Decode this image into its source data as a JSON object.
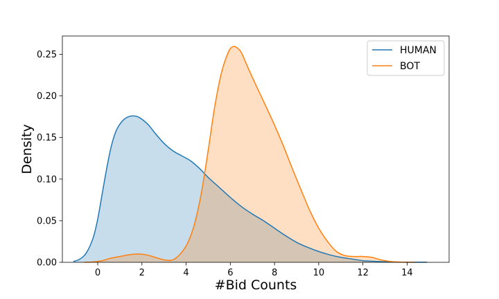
{
  "chart_data": {
    "type": "area",
    "title": "",
    "xlabel": "#Bid Counts",
    "ylabel": "Density",
    "xlim": [
      -1.6,
      15.9
    ],
    "ylim": [
      0,
      0.272
    ],
    "xticks": [
      0,
      2,
      4,
      6,
      8,
      10,
      12,
      14
    ],
    "yticks": [
      0.0,
      0.05,
      0.1,
      0.15,
      0.2,
      0.25
    ],
    "xtick_labels": [
      "0",
      "2",
      "4",
      "6",
      "8",
      "10",
      "12",
      "14"
    ],
    "ytick_labels": [
      "0.00",
      "0.05",
      "0.10",
      "0.15",
      "0.20",
      "0.25"
    ],
    "grid": false,
    "legend_position": "top-right",
    "series": [
      {
        "name": "HUMAN",
        "color": "#1f77b4",
        "x": [
          -1.1,
          -0.8,
          -0.5,
          -0.2,
          0.0,
          0.2,
          0.4,
          0.6,
          0.8,
          1.0,
          1.2,
          1.4,
          1.6,
          1.8,
          2.0,
          2.3,
          2.6,
          3.0,
          3.4,
          3.8,
          4.2,
          4.6,
          5.0,
          5.5,
          6.0,
          6.5,
          7.0,
          7.5,
          8.0,
          8.5,
          9.0,
          9.5,
          10.0,
          10.5,
          11.0,
          11.5,
          12.0,
          12.5,
          13.0,
          13.5,
          14.0,
          14.5,
          14.9
        ],
        "y": [
          0.001,
          0.004,
          0.012,
          0.03,
          0.052,
          0.082,
          0.112,
          0.138,
          0.156,
          0.166,
          0.172,
          0.175,
          0.176,
          0.175,
          0.172,
          0.165,
          0.155,
          0.143,
          0.134,
          0.128,
          0.122,
          0.113,
          0.102,
          0.09,
          0.078,
          0.067,
          0.058,
          0.05,
          0.041,
          0.032,
          0.024,
          0.018,
          0.013,
          0.009,
          0.006,
          0.004,
          0.002,
          0.0012,
          0.0006,
          0.0003,
          0.0001,
          0.0001,
          0.0001
        ]
      },
      {
        "name": "BOT",
        "color": "#ff7f0e",
        "x": [
          -0.6,
          -0.2,
          0.2,
          0.6,
          1.0,
          1.4,
          1.8,
          2.2,
          2.6,
          3.0,
          3.4,
          3.8,
          4.1,
          4.4,
          4.7,
          5.0,
          5.3,
          5.6,
          5.9,
          6.1,
          6.3,
          6.5,
          6.7,
          7.0,
          7.3,
          7.6,
          8.0,
          8.4,
          8.8,
          9.2,
          9.6,
          10.0,
          10.4,
          10.8,
          11.2,
          11.6,
          12.0,
          12.4,
          12.8,
          13.2,
          13.6,
          14.0,
          14.3
        ],
        "y": [
          0.0001,
          0.0005,
          0.002,
          0.005,
          0.007,
          0.009,
          0.01,
          0.009,
          0.006,
          0.003,
          0.003,
          0.012,
          0.025,
          0.048,
          0.085,
          0.135,
          0.188,
          0.228,
          0.252,
          0.259,
          0.258,
          0.252,
          0.24,
          0.222,
          0.205,
          0.188,
          0.165,
          0.14,
          0.113,
          0.087,
          0.062,
          0.041,
          0.025,
          0.013,
          0.008,
          0.007,
          0.007,
          0.006,
          0.003,
          0.0012,
          0.0004,
          0.0001,
          0.0001
        ]
      }
    ]
  }
}
